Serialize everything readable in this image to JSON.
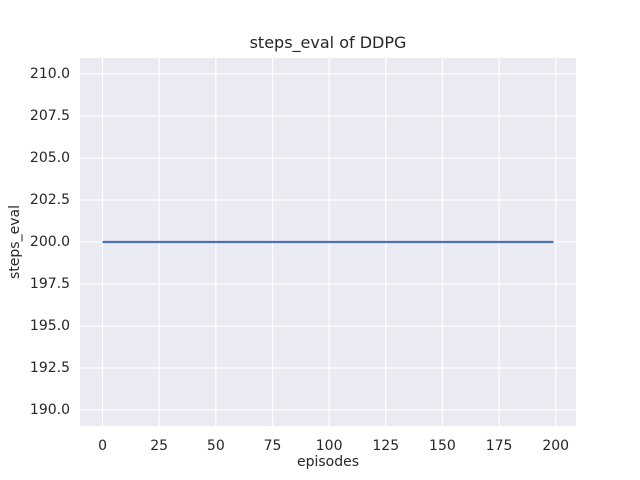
{
  "figure": {
    "background": "#ffffff"
  },
  "chart_data": {
    "type": "line",
    "title": "steps_eval of DDPG",
    "xlabel": "episodes",
    "ylabel": "steps_eval",
    "x_ticks": [
      0,
      25,
      50,
      75,
      100,
      125,
      150,
      175,
      200
    ],
    "x_tick_labels": [
      "0",
      "25",
      "50",
      "75",
      "100",
      "125",
      "150",
      "175",
      "200"
    ],
    "y_ticks": [
      190.0,
      192.5,
      195.0,
      197.5,
      200.0,
      202.5,
      205.0,
      207.5,
      210.0
    ],
    "y_tick_labels": [
      "190.0",
      "192.5",
      "195.0",
      "197.5",
      "200.0",
      "202.5",
      "205.0",
      "207.5",
      "210.0"
    ],
    "xlim": [
      -9.95,
      208.95
    ],
    "ylim": [
      189.05,
      210.95
    ],
    "grid": true,
    "legend_position": "none",
    "style": {
      "plot_background": "#eaeaf2",
      "grid_color": "#ffffff",
      "text_color": "#262626",
      "line_width": 2.2
    },
    "series": [
      {
        "name": "steps_eval of DDPG",
        "color": "#4c72b0",
        "x": [
          0,
          199
        ],
        "y": [
          200.0,
          200.0
        ],
        "description": "constant value 200 for all episodes from 0 to 199"
      }
    ]
  }
}
